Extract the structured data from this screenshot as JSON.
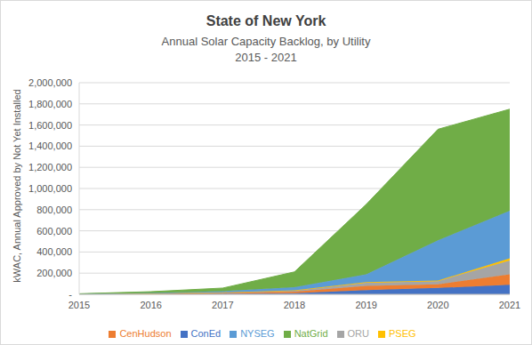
{
  "chart_data": {
    "type": "area",
    "title": "State of New York",
    "subtitle": "Annual Solar Capacity Backlog, by Utility",
    "subtitle2": "2015 - 2021",
    "y_label": "kWAC, Annual Approved by Not Yet Installed",
    "categories": [
      "2015",
      "2016",
      "2017",
      "2018",
      "2019",
      "2020",
      "2021"
    ],
    "series": [
      {
        "name": "ConEd",
        "color": "#4472c4",
        "values": [
          1000,
          3000,
          5000,
          10000,
          40000,
          60000,
          90000
        ]
      },
      {
        "name": "CenHudson",
        "color": "#ed7d31",
        "values": [
          1000,
          3000,
          8000,
          15000,
          40000,
          35000,
          100000
        ]
      },
      {
        "name": "ORU",
        "color": "#a5a5a5",
        "values": [
          500,
          2000,
          5000,
          10000,
          30000,
          30000,
          130000
        ]
      },
      {
        "name": "PSEG",
        "color": "#ffc000",
        "values": [
          0,
          0,
          1000,
          2000,
          5000,
          5000,
          20000
        ]
      },
      {
        "name": "NYSEG",
        "color": "#5b9bd5",
        "values": [
          1000,
          5000,
          10000,
          30000,
          75000,
          380000,
          450000
        ]
      },
      {
        "name": "NatGrid",
        "color": "#70ad47",
        "values": [
          2000,
          12000,
          30000,
          145000,
          660000,
          1050000,
          960000
        ]
      }
    ],
    "ylim": [
      0,
      2000000
    ],
    "yticks": [
      {
        "value": 0,
        "label": "-"
      },
      {
        "value": 200000,
        "label": "200,000"
      },
      {
        "value": 400000,
        "label": "400,000"
      },
      {
        "value": 600000,
        "label": "600,000"
      },
      {
        "value": 800000,
        "label": "800,000"
      },
      {
        "value": 1000000,
        "label": "1,000,000"
      },
      {
        "value": 1200000,
        "label": "1,200,000"
      },
      {
        "value": 1400000,
        "label": "1,400,000"
      },
      {
        "value": 1600000,
        "label": "1,600,000"
      },
      {
        "value": 1800000,
        "label": "1,800,000"
      },
      {
        "value": 2000000,
        "label": "2,000,000"
      }
    ],
    "grid": true,
    "stacked": true,
    "legend": "bottom"
  }
}
